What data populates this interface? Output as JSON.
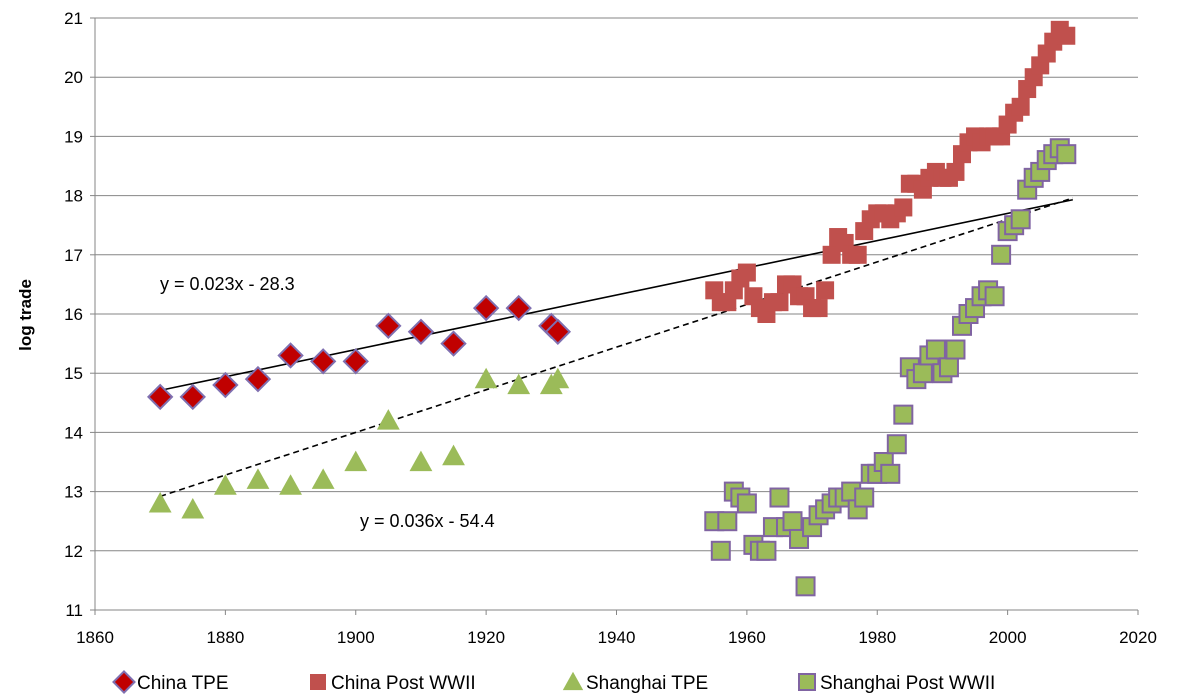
{
  "chart_data": {
    "type": "scatter",
    "ylabel": "log trade",
    "xlabel": "",
    "xlim": [
      1860,
      2020
    ],
    "ylim": [
      11,
      21
    ],
    "xticks": [
      "1860",
      "1880",
      "1900",
      "1920",
      "1940",
      "1960",
      "1980",
      "2000",
      "2020"
    ],
    "yticks": [
      "11",
      "12",
      "13",
      "14",
      "15",
      "16",
      "17",
      "18",
      "19",
      "20",
      "21"
    ],
    "grid": "horizontal",
    "legend_position": "bottom",
    "series": [
      {
        "name": "China TPE",
        "marker": "diamond",
        "color": "#C00000",
        "edge": "#7F6FB0",
        "points": [
          [
            1870,
            14.6
          ],
          [
            1875,
            14.6
          ],
          [
            1880,
            14.8
          ],
          [
            1885,
            14.9
          ],
          [
            1890,
            15.3
          ],
          [
            1895,
            15.2
          ],
          [
            1900,
            15.2
          ],
          [
            1905,
            15.8
          ],
          [
            1910,
            15.7
          ],
          [
            1915,
            15.5
          ],
          [
            1920,
            16.1
          ],
          [
            1925,
            16.1
          ],
          [
            1930,
            15.8
          ],
          [
            1931,
            15.7
          ]
        ]
      },
      {
        "name": "China Post WWII",
        "marker": "square",
        "color": "#C0504D",
        "edge": "#C0504D",
        "points": [
          [
            1955,
            16.4
          ],
          [
            1956,
            16.2
          ],
          [
            1957,
            16.2
          ],
          [
            1958,
            16.4
          ],
          [
            1959,
            16.6
          ],
          [
            1960,
            16.7
          ],
          [
            1961,
            16.3
          ],
          [
            1962,
            16.1
          ],
          [
            1963,
            16.0
          ],
          [
            1964,
            16.2
          ],
          [
            1965,
            16.2
          ],
          [
            1966,
            16.5
          ],
          [
            1967,
            16.5
          ],
          [
            1968,
            16.3
          ],
          [
            1969,
            16.3
          ],
          [
            1970,
            16.1
          ],
          [
            1971,
            16.1
          ],
          [
            1972,
            16.4
          ],
          [
            1973,
            17.0
          ],
          [
            1974,
            17.3
          ],
          [
            1975,
            17.2
          ],
          [
            1976,
            17.0
          ],
          [
            1977,
            17.0
          ],
          [
            1978,
            17.4
          ],
          [
            1979,
            17.6
          ],
          [
            1980,
            17.7
          ],
          [
            1981,
            17.7
          ],
          [
            1982,
            17.6
          ],
          [
            1983,
            17.7
          ],
          [
            1984,
            17.8
          ],
          [
            1985,
            18.2
          ],
          [
            1986,
            18.2
          ],
          [
            1987,
            18.1
          ],
          [
            1988,
            18.3
          ],
          [
            1989,
            18.4
          ],
          [
            1990,
            18.3
          ],
          [
            1991,
            18.3
          ],
          [
            1992,
            18.4
          ],
          [
            1993,
            18.7
          ],
          [
            1994,
            18.9
          ],
          [
            1995,
            19.0
          ],
          [
            1996,
            18.9
          ],
          [
            1997,
            19.0
          ],
          [
            1998,
            19.0
          ],
          [
            1999,
            19.0
          ],
          [
            2000,
            19.2
          ],
          [
            2001,
            19.4
          ],
          [
            2002,
            19.5
          ],
          [
            2003,
            19.8
          ],
          [
            2004,
            20.0
          ],
          [
            2005,
            20.2
          ],
          [
            2006,
            20.4
          ],
          [
            2007,
            20.6
          ],
          [
            2008,
            20.8
          ],
          [
            2009,
            20.7
          ]
        ]
      },
      {
        "name": "Shanghai TPE",
        "marker": "triangle",
        "color": "#9BBB59",
        "edge": "#9BBB59",
        "points": [
          [
            1870,
            12.8
          ],
          [
            1875,
            12.7
          ],
          [
            1880,
            13.1
          ],
          [
            1885,
            13.2
          ],
          [
            1890,
            13.1
          ],
          [
            1895,
            13.2
          ],
          [
            1900,
            13.5
          ],
          [
            1905,
            14.2
          ],
          [
            1910,
            13.5
          ],
          [
            1915,
            13.6
          ],
          [
            1920,
            14.9
          ],
          [
            1925,
            14.8
          ],
          [
            1930,
            14.8
          ],
          [
            1931,
            14.9
          ]
        ]
      },
      {
        "name": "Shanghai Post WWII",
        "marker": "square",
        "color": "#9BBB59",
        "edge": "#8064A2",
        "points": [
          [
            1955,
            12.5
          ],
          [
            1956,
            12.0
          ],
          [
            1957,
            12.5
          ],
          [
            1958,
            13.0
          ],
          [
            1959,
            12.9
          ],
          [
            1960,
            12.8
          ],
          [
            1961,
            12.1
          ],
          [
            1962,
            12.0
          ],
          [
            1963,
            12.0
          ],
          [
            1964,
            12.4
          ],
          [
            1965,
            12.9
          ],
          [
            1966,
            12.4
          ],
          [
            1967,
            12.5
          ],
          [
            1968,
            12.2
          ],
          [
            1969,
            11.4
          ],
          [
            1970,
            12.4
          ],
          [
            1971,
            12.6
          ],
          [
            1972,
            12.7
          ],
          [
            1973,
            12.8
          ],
          [
            1974,
            12.9
          ],
          [
            1975,
            12.9
          ],
          [
            1976,
            13.0
          ],
          [
            1977,
            12.7
          ],
          [
            1978,
            12.9
          ],
          [
            1979,
            13.3
          ],
          [
            1980,
            13.3
          ],
          [
            1981,
            13.5
          ],
          [
            1982,
            13.3
          ],
          [
            1983,
            13.8
          ],
          [
            1984,
            14.3
          ],
          [
            1985,
            15.1
          ],
          [
            1986,
            14.9
          ],
          [
            1987,
            15.0
          ],
          [
            1988,
            15.3
          ],
          [
            1989,
            15.4
          ],
          [
            1990,
            15.0
          ],
          [
            1991,
            15.1
          ],
          [
            1992,
            15.4
          ],
          [
            1993,
            15.8
          ],
          [
            1994,
            16.0
          ],
          [
            1995,
            16.1
          ],
          [
            1996,
            16.3
          ],
          [
            1997,
            16.4
          ],
          [
            1998,
            16.3
          ],
          [
            1999,
            17.0
          ],
          [
            2000,
            17.4
          ],
          [
            2001,
            17.5
          ],
          [
            2002,
            17.6
          ],
          [
            2003,
            18.1
          ],
          [
            2004,
            18.3
          ],
          [
            2005,
            18.4
          ],
          [
            2006,
            18.6
          ],
          [
            2007,
            18.7
          ],
          [
            2008,
            18.8
          ],
          [
            2009,
            18.7
          ]
        ]
      }
    ],
    "trendlines": [
      {
        "label": "y = 0.023x - 28.3",
        "slope": 0.023,
        "intercept": -28.3,
        "x_range": [
          1870,
          2010
        ],
        "style": "solid",
        "color": "#000000"
      },
      {
        "label": "y = 0.036x - 54.4",
        "slope": 0.036,
        "intercept": -54.4,
        "x_range": [
          1870,
          2010
        ],
        "style": "dashed",
        "color": "#000000"
      }
    ]
  }
}
